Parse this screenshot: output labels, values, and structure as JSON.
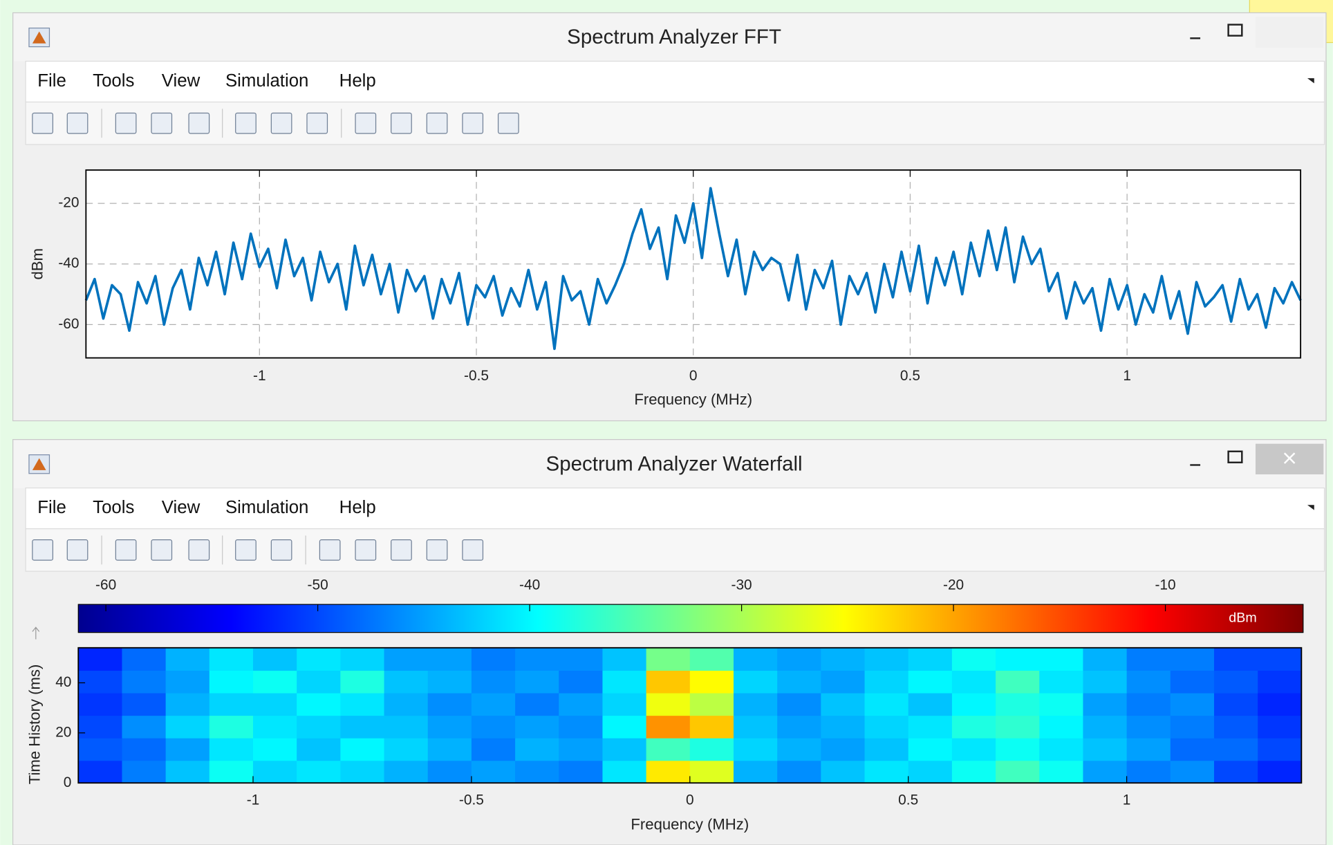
{
  "windows": [
    {
      "title": "Spectrum Analyzer FFT",
      "menu": [
        "File",
        "Tools",
        "View",
        "Simulation",
        "Help"
      ]
    },
    {
      "title": "Spectrum Analyzer Waterfall",
      "menu": [
        "File",
        "Tools",
        "View",
        "Simulation",
        "Help"
      ]
    }
  ],
  "chart_data": [
    {
      "type": "line",
      "xlabel": "Frequency (MHz)",
      "ylabel": "dBm",
      "color": "#0072bd",
      "xlim": [
        -1.4,
        1.4
      ],
      "ylim": [
        -71,
        -9
      ],
      "xticks": [
        -1,
        -0.5,
        0,
        0.5,
        1
      ],
      "yticks": [
        -60,
        -40,
        -20
      ],
      "grid": true,
      "x": [
        -1.4,
        -1.38,
        -1.36,
        -1.34,
        -1.32,
        -1.3,
        -1.28,
        -1.26,
        -1.24,
        -1.22,
        -1.2,
        -1.18,
        -1.16,
        -1.14,
        -1.12,
        -1.1,
        -1.08,
        -1.06,
        -1.04,
        -1.02,
        -1,
        -0.98,
        -0.96,
        -0.94,
        -0.92,
        -0.9,
        -0.88,
        -0.86,
        -0.84,
        -0.82,
        -0.8,
        -0.78,
        -0.76,
        -0.74,
        -0.72,
        -0.7,
        -0.68,
        -0.66,
        -0.64,
        -0.62,
        -0.6,
        -0.58,
        -0.56,
        -0.54,
        -0.52,
        -0.5,
        -0.48,
        -0.46,
        -0.44,
        -0.42,
        -0.4,
        -0.38,
        -0.36,
        -0.34,
        -0.32,
        -0.3,
        -0.28,
        -0.26,
        -0.24,
        -0.22,
        -0.2,
        -0.18,
        -0.16,
        -0.14,
        -0.12,
        -0.1,
        -0.08,
        -0.06,
        -0.04,
        -0.02,
        0,
        0.02,
        0.04,
        0.06,
        0.08,
        0.1,
        0.12,
        0.14,
        0.16,
        0.18,
        0.2,
        0.22,
        0.24,
        0.26,
        0.28,
        0.3,
        0.32,
        0.34,
        0.36,
        0.38,
        0.4,
        0.42,
        0.44,
        0.46,
        0.48,
        0.5,
        0.52,
        0.54,
        0.56,
        0.58,
        0.6,
        0.62,
        0.64,
        0.66,
        0.68,
        0.7,
        0.72,
        0.74,
        0.76,
        0.78,
        0.8,
        0.82,
        0.84,
        0.86,
        0.88,
        0.9,
        0.92,
        0.94,
        0.96,
        0.98,
        1,
        1.02,
        1.04,
        1.06,
        1.08,
        1.1,
        1.12,
        1.14,
        1.16,
        1.18,
        1.2,
        1.22,
        1.24,
        1.26,
        1.28,
        1.3,
        1.32,
        1.34,
        1.36,
        1.38,
        1.4
      ],
      "values": [
        -52,
        -45,
        -58,
        -47,
        -50,
        -62,
        -46,
        -53,
        -44,
        -60,
        -48,
        -42,
        -55,
        -38,
        -47,
        -36,
        -50,
        -33,
        -45,
        -30,
        -41,
        -35,
        -48,
        -32,
        -44,
        -38,
        -52,
        -36,
        -46,
        -40,
        -55,
        -34,
        -47,
        -37,
        -50,
        -40,
        -56,
        -42,
        -49,
        -44,
        -58,
        -45,
        -53,
        -43,
        -60,
        -47,
        -51,
        -44,
        -57,
        -48,
        -54,
        -42,
        -55,
        -46,
        -68,
        -44,
        -52,
        -49,
        -60,
        -45,
        -53,
        -47,
        -40,
        -30,
        -22,
        -35,
        -28,
        -45,
        -24,
        -33,
        -20,
        -38,
        -15,
        -30,
        -44,
        -32,
        -50,
        -36,
        -42,
        -38,
        -40,
        -52,
        -37,
        -55,
        -42,
        -48,
        -39,
        -60,
        -44,
        -50,
        -43,
        -56,
        -40,
        -51,
        -36,
        -49,
        -34,
        -53,
        -38,
        -47,
        -36,
        -50,
        -33,
        -44,
        -29,
        -42,
        -28,
        -46,
        -31,
        -40,
        -35,
        -49,
        -43,
        -58,
        -46,
        -53,
        -48,
        -62,
        -45,
        -55,
        -47,
        -60,
        -50,
        -56,
        -44,
        -58,
        -49,
        -63,
        -46,
        -54,
        -51,
        -47,
        -59,
        -45,
        -55,
        -50,
        -61,
        -48,
        -53,
        -46,
        -52
      ]
    },
    {
      "type": "heatmap",
      "xlabel": "Frequency (MHz)",
      "ylabel": "Time History (ms)",
      "colormap": "jet",
      "clim": [
        -61.3,
        -3.5
      ],
      "colorbar_ticks": [
        -60,
        -50,
        -40,
        -30,
        -20,
        -10
      ],
      "colorbar_label": "dBm",
      "xlim": [
        -1.4,
        1.4
      ],
      "ylim": [
        0,
        54
      ],
      "xticks": [
        -1,
        -0.5,
        0,
        0.5,
        1
      ],
      "yticks": [
        0,
        20,
        40
      ],
      "x": [
        -1.35,
        -1.25,
        -1.15,
        -1.05,
        -0.95,
        -0.85,
        -0.75,
        -0.65,
        -0.55,
        -0.45,
        -0.35,
        -0.25,
        -0.15,
        -0.05,
        0.05,
        0.15,
        0.25,
        0.35,
        0.45,
        0.55,
        0.65,
        0.75,
        0.85,
        0.95,
        1.05,
        1.15,
        1.25,
        1.35
      ],
      "y": [
        4.5,
        13.5,
        22.5,
        31.5,
        40.5,
        49.5
      ],
      "z": [
        [
          -51,
          -47,
          -43,
          -39,
          -42,
          -41,
          -42,
          -44,
          -46,
          -45,
          -46,
          -47,
          -41,
          -24,
          -27,
          -44,
          -46,
          -43,
          -41,
          -42,
          -39,
          -36,
          -39,
          -45,
          -47,
          -46,
          -50,
          -52
        ],
        [
          -49,
          -48,
          -45,
          -41,
          -40,
          -43,
          -40,
          -42,
          -44,
          -47,
          -44,
          -45,
          -43,
          -36,
          -38,
          -42,
          -44,
          -45,
          -43,
          -40,
          -41,
          -39,
          -41,
          -43,
          -45,
          -48,
          -48,
          -50
        ],
        [
          -50,
          -46,
          -42,
          -38,
          -41,
          -42,
          -43,
          -43,
          -45,
          -46,
          -45,
          -46,
          -40,
          -19,
          -22,
          -43,
          -45,
          -44,
          -42,
          -41,
          -38,
          -37,
          -40,
          -44,
          -46,
          -47,
          -49,
          -51
        ],
        [
          -51,
          -49,
          -44,
          -42,
          -42,
          -40,
          -41,
          -44,
          -46,
          -45,
          -47,
          -45,
          -42,
          -26,
          -29,
          -44,
          -46,
          -43,
          -41,
          -43,
          -40,
          -38,
          -39,
          -45,
          -47,
          -46,
          -50,
          -52
        ],
        [
          -50,
          -47,
          -45,
          -40,
          -39,
          -42,
          -38,
          -43,
          -44,
          -46,
          -45,
          -47,
          -41,
          -22,
          -25,
          -42,
          -44,
          -45,
          -42,
          -40,
          -41,
          -36,
          -41,
          -43,
          -46,
          -48,
          -49,
          -51
        ],
        [
          -52,
          -48,
          -44,
          -41,
          -43,
          -41,
          -42,
          -45,
          -45,
          -47,
          -46,
          -46,
          -43,
          -33,
          -35,
          -44,
          -45,
          -44,
          -43,
          -42,
          -39,
          -40,
          -40,
          -44,
          -47,
          -47,
          -50,
          -50
        ]
      ]
    }
  ]
}
